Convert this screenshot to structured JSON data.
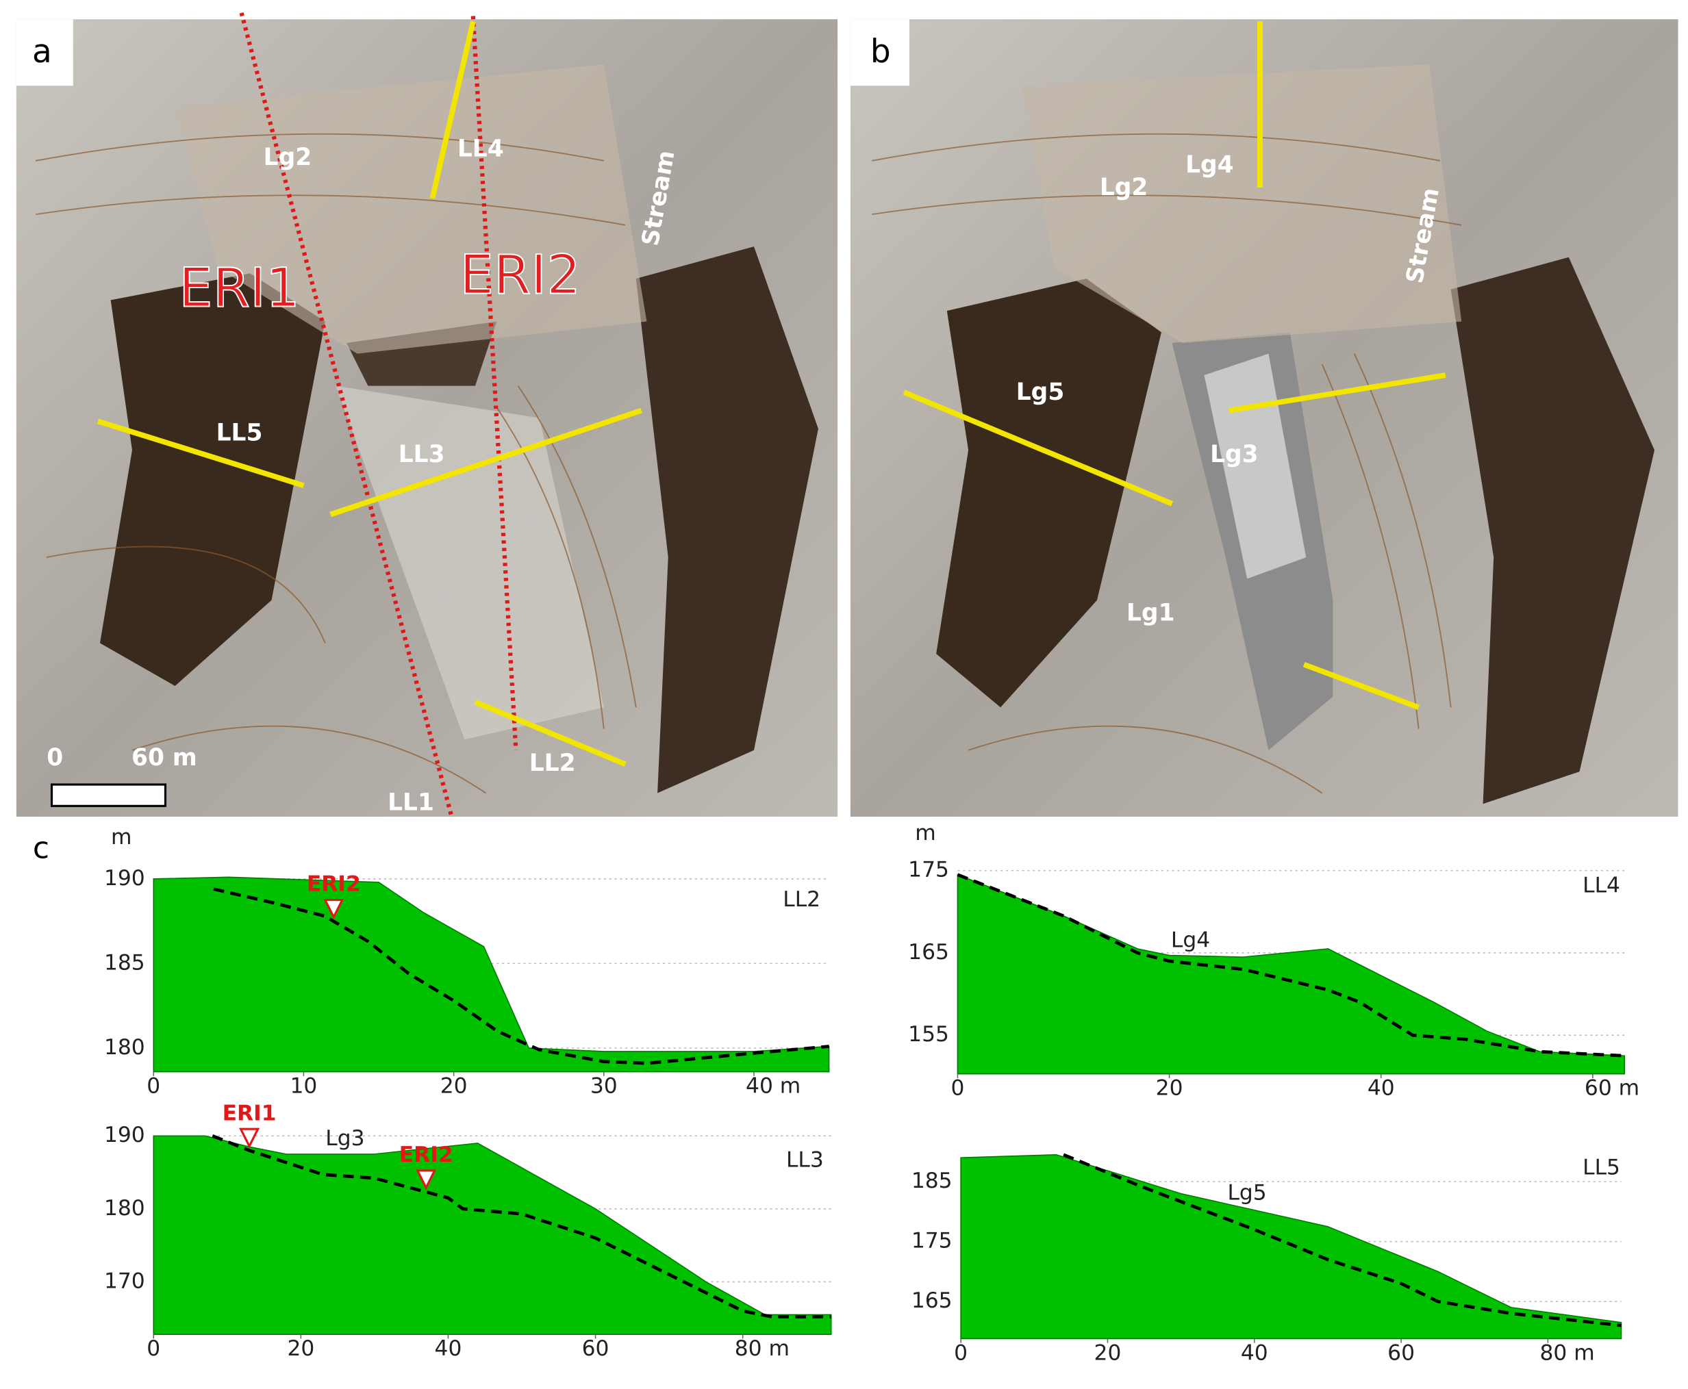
{
  "maps": {
    "a": {
      "panel": "a",
      "labels": [
        "Lg2",
        "LL4",
        "Stream",
        "ERI1",
        "ERI2",
        "LL5",
        "LL3",
        "LL2",
        "LL1",
        "0",
        "60 m"
      ]
    },
    "b": {
      "panel": "b",
      "labels": [
        "Lg4",
        "Lg2",
        "Stream",
        "Lg5",
        "Lg3",
        "Lg1"
      ]
    }
  },
  "panel_c": "c",
  "chart_data": [
    {
      "type": "area",
      "title": "LL2",
      "y_unit": "m",
      "xlim": [
        0,
        45
      ],
      "xticks": [
        0,
        10,
        20,
        30,
        {
          "value": 40,
          "label": "40 m"
        }
      ],
      "ylim": [
        178.6,
        190.4
      ],
      "yticks": [
        180,
        185,
        190
      ],
      "grid": true,
      "series": [
        {
          "color": "#00c000",
          "x": [
            0,
            5,
            15,
            18,
            22,
            25,
            30,
            35,
            40,
            45
          ],
          "values": [
            190,
            190.1,
            189.8,
            188,
            186,
            180,
            179.8,
            179.8,
            179.8,
            180.1
          ]
        },
        {
          "color": "#000000",
          "dashed": true,
          "x": [
            4,
            7.9,
            11.4,
            14.3,
            17,
            20,
            22.9,
            25.7,
            30,
            32.9,
            36.4,
            40,
            45
          ],
          "values": [
            189.4,
            188.6,
            187.8,
            186.3,
            184.4,
            182.8,
            181,
            179.9,
            179.2,
            179.1,
            179.4,
            179.7,
            180.1
          ]
        }
      ],
      "markers": [
        {
          "text": "ERI2",
          "x": 12
        }
      ],
      "labels": []
    },
    {
      "type": "area",
      "title": "LL3",
      "xlim": [
        0,
        92
      ],
      "xticks": [
        0,
        20,
        40,
        60,
        {
          "value": 80,
          "label": "80 m"
        }
      ],
      "ylim": [
        162.8,
        191
      ],
      "yticks": [
        170,
        180,
        190
      ],
      "grid": true,
      "series": [
        {
          "color": "#00c000",
          "x": [
            0,
            7,
            13,
            18,
            30,
            44,
            60,
            75,
            83,
            92
          ],
          "values": [
            190,
            190,
            188.5,
            187.5,
            187.5,
            189,
            180,
            170,
            165.5,
            165.5
          ]
        },
        {
          "color": "#000000",
          "dashed": true,
          "x": [
            8,
            13,
            23,
            30,
            40,
            42,
            50,
            60,
            70,
            80,
            84,
            92
          ],
          "values": [
            190,
            188,
            184.7,
            184.2,
            181.5,
            180,
            179.3,
            176,
            171,
            166,
            165.2,
            165.2
          ]
        }
      ],
      "markers": [
        {
          "text": "ERI1",
          "x": 13
        },
        {
          "text": "ERI2",
          "x": 37
        }
      ],
      "labels": [
        {
          "text": "Lg3",
          "x": 26
        }
      ]
    },
    {
      "type": "area",
      "title": "LL4",
      "y_unit": "m",
      "xlim": [
        0,
        63
      ],
      "xticks": [
        0,
        20,
        40,
        {
          "value": 60,
          "label": "60 m"
        }
      ],
      "ylim": [
        150.3,
        175.3
      ],
      "yticks": [
        155,
        165,
        175
      ],
      "grid": true,
      "series": [
        {
          "color": "#00c000",
          "x": [
            0,
            10,
            17,
            20,
            27,
            35,
            45,
            50,
            55,
            63
          ],
          "values": [
            174.5,
            169.5,
            165.5,
            164.7,
            164.5,
            165.5,
            159,
            155.5,
            153,
            152.5
          ]
        },
        {
          "color": "#000000",
          "dashed": true,
          "x": [
            0,
            10,
            17,
            20,
            27,
            35,
            38,
            43,
            48,
            55,
            63
          ],
          "values": [
            174.5,
            169.5,
            165,
            164,
            163,
            160.5,
            159,
            155,
            154.5,
            153,
            152.5
          ]
        }
      ],
      "markers": [],
      "labels": [
        {
          "text": "Lg4",
          "x": 22
        }
      ]
    },
    {
      "type": "area",
      "title": "LL5",
      "xlim": [
        0,
        90
      ],
      "xticks": [
        0,
        20,
        40,
        60,
        {
          "value": 80,
          "label": "80 m"
        }
      ],
      "ylim": [
        158.8,
        191
      ],
      "yticks": [
        165,
        175,
        185
      ],
      "grid": true,
      "series": [
        {
          "color": "#00c000",
          "x": [
            0,
            13,
            30,
            50,
            65,
            75,
            90
          ],
          "values": [
            189,
            189.5,
            183,
            177.5,
            170,
            164,
            161.5
          ]
        },
        {
          "color": "#000000",
          "dashed": true,
          "x": [
            14,
            25,
            40,
            50,
            60,
            65,
            75,
            90
          ],
          "values": [
            189.5,
            184,
            177,
            172,
            168,
            165,
            163,
            161
          ]
        }
      ],
      "markers": [],
      "labels": [
        {
          "text": "Lg5",
          "x": 39
        }
      ]
    }
  ]
}
